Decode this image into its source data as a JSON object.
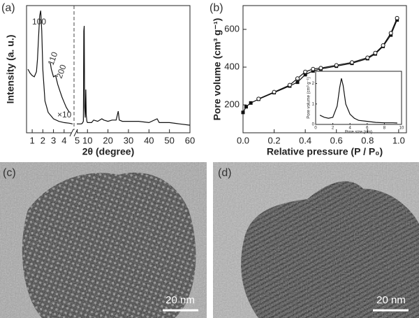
{
  "chart_data": [
    {
      "type": "line",
      "panel_label": "(a)",
      "xlabel": "2θ (degree)",
      "ylabel": "Intensity (a. u.)",
      "annotations": [
        "100",
        "110",
        "200",
        "×10"
      ],
      "xlim": [
        0.6,
        4.8
      ],
      "xticks": [
        1,
        2,
        3,
        4
      ],
      "x2lim": [
        4.8,
        60
      ],
      "x2ticks": [
        5,
        10,
        20,
        30,
        40,
        50,
        60
      ],
      "ylim": [
        0,
        100
      ],
      "color": "#111",
      "series": [
        {
          "x": [
            0.6,
            0.8,
            1.0,
            1.2,
            1.4,
            1.5,
            1.6,
            1.7,
            1.8,
            1.9,
            2.0,
            2.2,
            2.5,
            3,
            3.5,
            4,
            4.5,
            4.8
          ],
          "values": [
            50,
            47,
            45,
            44,
            48,
            58,
            75,
            92,
            96,
            80,
            50,
            25,
            16,
            11,
            9,
            8,
            7.5,
            7
          ]
        },
        {
          "x": [
            2.7,
            2.8,
            3.0,
            3.2,
            3.4,
            3.6,
            3.8,
            4.0,
            4.2,
            4.5
          ],
          "values": [
            55,
            50,
            44,
            45,
            38,
            33,
            28,
            24,
            20,
            16
          ]
        },
        {
          "axis": "x2",
          "x": [
            4.8,
            6,
            7,
            7.5,
            8,
            8.2,
            8.4,
            8.6,
            8.9,
            9.2,
            9.4,
            9.7,
            10,
            12,
            13,
            15,
            17,
            18,
            20,
            22,
            24,
            25,
            25.5,
            27,
            30,
            35,
            40,
            44,
            45,
            50,
            55,
            60
          ],
          "values": [
            7,
            7,
            7,
            7.5,
            9,
            80,
            84,
            20,
            12,
            34,
            14,
            9,
            8,
            8,
            10,
            9,
            11,
            10,
            9,
            10,
            10,
            17,
            10,
            9,
            9,
            9,
            8,
            11,
            8,
            8,
            7,
            6
          ]
        }
      ]
    },
    {
      "type": "scatter",
      "panel_label": "(b)",
      "xlabel": "Relative pressure (P / P₀)",
      "ylabel": "Pore volume (cm³ g⁻¹)",
      "xlim": [
        0,
        1.05
      ],
      "xticks": [
        {
          "value": 0,
          "label": "0.0"
        },
        {
          "value": 0.2,
          "label": "0.2"
        },
        {
          "value": 0.4,
          "label": "0.4"
        },
        {
          "value": 0.6,
          "label": "0.6"
        },
        {
          "value": 0.8,
          "label": "0.8"
        },
        {
          "value": 1,
          "label": "1.0"
        }
      ],
      "ylim": [
        52,
        726
      ],
      "yticks": [
        200,
        400,
        600
      ],
      "color": "#111",
      "series": [
        {
          "marker": "square",
          "x": [
            0,
            0.02,
            0.05,
            0.1,
            0.2,
            0.3,
            0.35,
            0.4,
            0.45,
            0.5,
            0.6,
            0.7,
            0.8,
            0.85,
            0.9,
            0.95,
            0.99
          ],
          "values": [
            160,
            190,
            210,
            230,
            265,
            300,
            320,
            360,
            380,
            390,
            405,
            420,
            445,
            470,
            510,
            570,
            650
          ]
        },
        {
          "marker": "circle",
          "x": [
            0.1,
            0.2,
            0.3,
            0.35,
            0.4,
            0.45,
            0.5,
            0.6,
            0.7,
            0.8,
            0.85,
            0.9,
            0.95,
            0.99
          ],
          "values": [
            232,
            268,
            305,
            340,
            375,
            390,
            395,
            410,
            425,
            450,
            475,
            515,
            580,
            660
          ]
        }
      ]
    },
    {
      "type": "line",
      "xlabel": "Pore size (nm)",
      "ylabel": "Pore volume (cm³ g⁻¹)",
      "xlim": [
        0,
        10
      ],
      "xticks": [
        0,
        2,
        4,
        6,
        8,
        10
      ],
      "ylim": [
        0,
        2.6
      ],
      "yticks": [
        0,
        1,
        2
      ],
      "color": "#111",
      "series": [
        {
          "x": [
            0.5,
            1,
            1.5,
            2,
            2.5,
            2.8,
            3,
            3.2,
            3.5,
            4,
            4.5,
            5,
            6,
            7,
            8,
            9,
            9.5
          ],
          "values": [
            0.45,
            0.35,
            0.3,
            0.35,
            0.9,
            1.8,
            2.25,
            1.9,
            1.0,
            0.5,
            0.3,
            0.2,
            0.15,
            0.1,
            0.08,
            0.08,
            0.07
          ]
        }
      ]
    }
  ],
  "images": [
    {
      "label": "(c)",
      "scale_bar": "20 nm"
    },
    {
      "label": "(d)",
      "scale_bar": "20 nm"
    }
  ]
}
